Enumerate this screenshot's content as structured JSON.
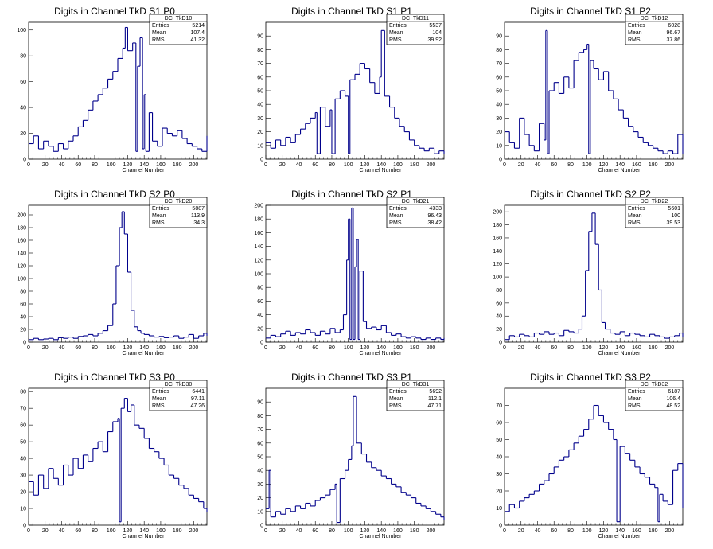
{
  "chart_data": [
    {
      "type": "line",
      "id": "p0",
      "title": "Digits in Channel TkD S1 P0",
      "xlabel": "Channel Number",
      "ylabel": "",
      "xlim": [
        0,
        216
      ],
      "ylim": [
        0,
        106
      ],
      "xticks": [
        0,
        20,
        40,
        60,
        80,
        100,
        120,
        140,
        160,
        180,
        200
      ],
      "yticks": [
        0,
        20,
        40,
        60,
        80,
        100
      ],
      "stats": {
        "name": "DC_TkD10",
        "entries": "5214",
        "mean": "107.4",
        "rms": "41.32"
      },
      "x": [
        0,
        6,
        12,
        18,
        24,
        30,
        36,
        42,
        48,
        54,
        60,
        66,
        72,
        78,
        84,
        90,
        96,
        102,
        108,
        114,
        117,
        120,
        126,
        130,
        132,
        135,
        138,
        140,
        142,
        146,
        150,
        156,
        162,
        168,
        174,
        180,
        186,
        192,
        198,
        204,
        210,
        216
      ],
      "values": [
        12,
        18,
        8,
        14,
        10,
        6,
        12,
        8,
        14,
        18,
        25,
        30,
        38,
        45,
        50,
        55,
        62,
        68,
        78,
        86,
        102,
        84,
        90,
        6,
        72,
        94,
        8,
        50,
        6,
        36,
        14,
        10,
        24,
        20,
        18,
        22,
        16,
        12,
        10,
        8,
        6,
        18
      ]
    },
    {
      "type": "line",
      "id": "p1",
      "title": "Digits in Channel TkD S1 P1",
      "xlabel": "Channel Number",
      "ylabel": "",
      "xlim": [
        0,
        216
      ],
      "ylim": [
        0,
        100
      ],
      "xticks": [
        0,
        20,
        40,
        60,
        80,
        100,
        120,
        140,
        160,
        180,
        200
      ],
      "yticks": [
        0,
        10,
        20,
        30,
        40,
        50,
        60,
        70,
        80,
        90
      ],
      "stats": {
        "name": "DC_TkD11",
        "entries": "5537",
        "mean": "104",
        "rms": "39.92"
      },
      "x": [
        0,
        6,
        12,
        18,
        24,
        30,
        36,
        42,
        48,
        54,
        60,
        62,
        66,
        72,
        78,
        80,
        84,
        90,
        96,
        100,
        102,
        108,
        114,
        120,
        126,
        132,
        138,
        140,
        144,
        150,
        156,
        162,
        168,
        174,
        180,
        186,
        192,
        198,
        204,
        210,
        216
      ],
      "values": [
        12,
        8,
        14,
        10,
        16,
        12,
        18,
        22,
        26,
        30,
        34,
        4,
        38,
        24,
        36,
        4,
        44,
        50,
        46,
        4,
        58,
        62,
        70,
        66,
        56,
        48,
        60,
        94,
        46,
        38,
        30,
        24,
        20,
        14,
        10,
        8,
        6,
        8,
        4,
        6,
        4
      ]
    },
    {
      "type": "line",
      "id": "p2",
      "title": "Digits in Channel TkD S1 P2",
      "xlabel": "Channel Number",
      "ylabel": "",
      "xlim": [
        0,
        216
      ],
      "ylim": [
        0,
        100
      ],
      "xticks": [
        0,
        20,
        40,
        60,
        80,
        100,
        120,
        140,
        160,
        180,
        200
      ],
      "yticks": [
        0,
        10,
        20,
        30,
        40,
        50,
        60,
        70,
        80,
        90
      ],
      "stats": {
        "name": "DC_TkD12",
        "entries": "6028",
        "mean": "96.67",
        "rms": "37.86"
      },
      "x": [
        0,
        6,
        12,
        18,
        24,
        30,
        36,
        42,
        48,
        50,
        52,
        54,
        60,
        66,
        72,
        78,
        84,
        90,
        96,
        100,
        102,
        104,
        108,
        114,
        120,
        126,
        132,
        138,
        144,
        150,
        156,
        162,
        168,
        174,
        180,
        186,
        192,
        198,
        204,
        210,
        216
      ],
      "values": [
        20,
        12,
        8,
        30,
        18,
        10,
        6,
        26,
        14,
        94,
        4,
        50,
        56,
        48,
        60,
        52,
        72,
        78,
        80,
        84,
        4,
        72,
        66,
        58,
        64,
        50,
        44,
        36,
        30,
        24,
        20,
        16,
        12,
        10,
        8,
        6,
        4,
        6,
        4,
        18,
        4
      ]
    },
    {
      "type": "line",
      "id": "p3",
      "title": "Digits in Channel TkD S2 P0",
      "xlabel": "Channel Number",
      "ylabel": "",
      "xlim": [
        0,
        216
      ],
      "ylim": [
        0,
        215
      ],
      "xticks": [
        0,
        20,
        40,
        60,
        80,
        100,
        120,
        140,
        160,
        180,
        200
      ],
      "yticks": [
        0,
        20,
        40,
        60,
        80,
        100,
        120,
        140,
        160,
        180,
        200
      ],
      "stats": {
        "name": "DC_TkD20",
        "entries": "5887",
        "mean": "113.9",
        "rms": "34.3"
      },
      "x": [
        0,
        6,
        12,
        18,
        24,
        30,
        36,
        42,
        48,
        54,
        60,
        66,
        72,
        78,
        84,
        90,
        96,
        102,
        106,
        110,
        113,
        116,
        120,
        124,
        128,
        132,
        136,
        140,
        146,
        152,
        158,
        164,
        170,
        176,
        182,
        188,
        194,
        200,
        206,
        212,
        216
      ],
      "values": [
        4,
        6,
        4,
        5,
        6,
        4,
        7,
        6,
        8,
        6,
        9,
        10,
        12,
        10,
        14,
        18,
        26,
        60,
        120,
        180,
        205,
        170,
        110,
        50,
        24,
        18,
        14,
        12,
        10,
        8,
        9,
        7,
        8,
        10,
        6,
        8,
        12,
        6,
        10,
        14,
        10
      ]
    },
    {
      "type": "line",
      "id": "p4",
      "title": "Digits in Channel TkD S2 P1",
      "xlabel": "Channel Number",
      "ylabel": "",
      "xlim": [
        0,
        216
      ],
      "ylim": [
        0,
        200
      ],
      "xticks": [
        0,
        20,
        40,
        60,
        80,
        100,
        120,
        140,
        160,
        180,
        200
      ],
      "yticks": [
        0,
        20,
        40,
        60,
        80,
        100,
        120,
        140,
        160,
        180,
        200
      ],
      "stats": {
        "name": "DC_TkD21",
        "entries": "4333",
        "mean": "96.43",
        "rms": "38.42"
      },
      "x": [
        0,
        6,
        12,
        18,
        24,
        30,
        36,
        42,
        48,
        54,
        60,
        66,
        72,
        78,
        84,
        90,
        94,
        98,
        100,
        102,
        104,
        106,
        108,
        110,
        112,
        114,
        118,
        122,
        128,
        134,
        140,
        146,
        152,
        158,
        164,
        170,
        176,
        182,
        188,
        194,
        200,
        206,
        212,
        216
      ],
      "values": [
        6,
        10,
        8,
        12,
        16,
        10,
        14,
        12,
        18,
        14,
        10,
        16,
        12,
        20,
        14,
        18,
        40,
        120,
        180,
        4,
        196,
        4,
        110,
        150,
        4,
        104,
        30,
        20,
        22,
        18,
        24,
        14,
        10,
        12,
        8,
        6,
        8,
        6,
        4,
        6,
        4,
        6,
        4,
        6
      ]
    },
    {
      "type": "line",
      "id": "p5",
      "title": "Digits in Channel TkD S2 P2",
      "xlabel": "Channel Number",
      "ylabel": "",
      "xlim": [
        0,
        216
      ],
      "ylim": [
        0,
        210
      ],
      "xticks": [
        0,
        20,
        40,
        60,
        80,
        100,
        120,
        140,
        160,
        180,
        200
      ],
      "yticks": [
        0,
        20,
        40,
        60,
        80,
        100,
        120,
        140,
        160,
        180,
        200
      ],
      "stats": {
        "name": "DC_TkD22",
        "entries": "5601",
        "mean": "100",
        "rms": "39.53"
      },
      "x": [
        0,
        6,
        12,
        18,
        24,
        30,
        36,
        42,
        48,
        54,
        60,
        66,
        72,
        78,
        84,
        90,
        94,
        98,
        102,
        106,
        110,
        114,
        118,
        122,
        128,
        134,
        140,
        146,
        152,
        158,
        164,
        170,
        176,
        182,
        188,
        194,
        200,
        206,
        212,
        216
      ],
      "values": [
        4,
        10,
        8,
        12,
        10,
        8,
        14,
        12,
        16,
        12,
        14,
        10,
        18,
        16,
        14,
        20,
        40,
        110,
        170,
        198,
        150,
        80,
        30,
        20,
        14,
        12,
        16,
        10,
        14,
        12,
        10,
        8,
        12,
        10,
        8,
        6,
        8,
        10,
        14,
        8
      ]
    },
    {
      "type": "line",
      "id": "p6",
      "title": "Digits in Channel TkD S3 P0",
      "xlabel": "Channel Number",
      "ylabel": "",
      "xlim": [
        0,
        216
      ],
      "ylim": [
        0,
        82
      ],
      "xticks": [
        0,
        20,
        40,
        60,
        80,
        100,
        120,
        140,
        160,
        180,
        200
      ],
      "yticks": [
        0,
        10,
        20,
        30,
        40,
        50,
        60,
        70,
        80
      ],
      "stats": {
        "name": "DC_TkD30",
        "entries": "6441",
        "mean": "97.11",
        "rms": "47.26"
      },
      "x": [
        0,
        6,
        12,
        18,
        24,
        30,
        36,
        42,
        48,
        54,
        60,
        66,
        72,
        78,
        84,
        90,
        96,
        102,
        108,
        110,
        112,
        116,
        120,
        124,
        128,
        134,
        140,
        146,
        152,
        158,
        164,
        170,
        176,
        182,
        188,
        194,
        200,
        206,
        212,
        216
      ],
      "values": [
        26,
        18,
        30,
        22,
        34,
        28,
        24,
        36,
        30,
        40,
        34,
        42,
        38,
        46,
        50,
        44,
        56,
        62,
        64,
        2,
        70,
        76,
        68,
        72,
        60,
        58,
        52,
        46,
        44,
        40,
        36,
        30,
        28,
        24,
        22,
        18,
        16,
        14,
        10,
        8
      ]
    },
    {
      "type": "line",
      "id": "p7",
      "title": "Digits in Channel TkD S3 P1",
      "xlabel": "Channel Number",
      "ylabel": "",
      "xlim": [
        0,
        216
      ],
      "ylim": [
        0,
        100
      ],
      "xticks": [
        0,
        20,
        40,
        60,
        80,
        100,
        120,
        140,
        160,
        180,
        200
      ],
      "yticks": [
        0,
        10,
        20,
        30,
        40,
        50,
        60,
        70,
        80,
        90
      ],
      "stats": {
        "name": "DC_TkD31",
        "entries": "5692",
        "mean": "112.1",
        "rms": "47.71"
      },
      "x": [
        0,
        4,
        6,
        12,
        18,
        24,
        30,
        36,
        42,
        48,
        54,
        60,
        66,
        72,
        78,
        84,
        86,
        90,
        96,
        100,
        104,
        106,
        110,
        116,
        122,
        128,
        134,
        140,
        146,
        152,
        158,
        164,
        170,
        176,
        182,
        188,
        194,
        200,
        206,
        212,
        216
      ],
      "values": [
        12,
        40,
        6,
        10,
        8,
        12,
        10,
        14,
        12,
        16,
        14,
        18,
        20,
        22,
        26,
        30,
        2,
        34,
        40,
        48,
        58,
        94,
        60,
        52,
        46,
        42,
        40,
        36,
        34,
        30,
        28,
        24,
        22,
        20,
        16,
        14,
        12,
        10,
        8,
        6,
        4
      ]
    },
    {
      "type": "line",
      "id": "p8",
      "title": "Digits in Channel TkD S3 P2",
      "xlabel": "Channel Number",
      "ylabel": "",
      "xlim": [
        0,
        216
      ],
      "ylim": [
        0,
        80
      ],
      "xticks": [
        0,
        20,
        40,
        60,
        80,
        100,
        120,
        140,
        160,
        180,
        200
      ],
      "yticks": [
        0,
        10,
        20,
        30,
        40,
        50,
        60,
        70
      ],
      "stats": {
        "name": "DC_TkD32",
        "entries": "6187",
        "mean": "106.4",
        "rms": "48.52"
      },
      "x": [
        0,
        6,
        12,
        18,
        24,
        30,
        36,
        42,
        48,
        54,
        60,
        66,
        72,
        78,
        84,
        90,
        96,
        102,
        108,
        114,
        120,
        126,
        132,
        136,
        140,
        146,
        152,
        158,
        164,
        170,
        176,
        182,
        186,
        188,
        192,
        198,
        204,
        210,
        216
      ],
      "values": [
        8,
        12,
        10,
        14,
        16,
        18,
        20,
        24,
        26,
        30,
        34,
        38,
        40,
        44,
        48,
        52,
        56,
        62,
        70,
        64,
        60,
        56,
        50,
        2,
        46,
        42,
        38,
        34,
        30,
        28,
        24,
        22,
        2,
        18,
        14,
        12,
        32,
        36,
        10
      ]
    }
  ]
}
